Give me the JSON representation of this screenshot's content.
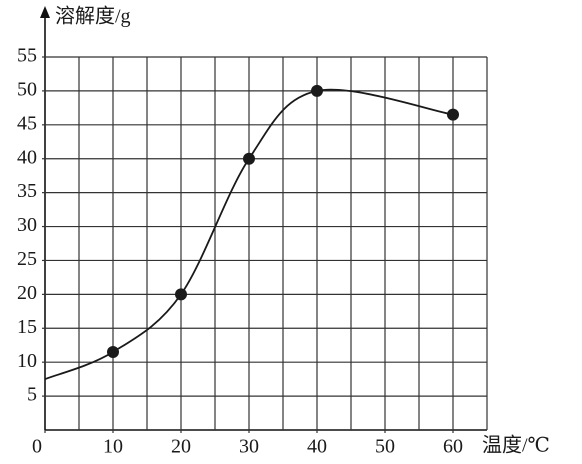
{
  "chart_data": {
    "type": "line",
    "ylabel": "溶解度/g",
    "xlabel": "温度/℃",
    "x": [
      0,
      10,
      20,
      30,
      40,
      60
    ],
    "series": [
      {
        "color": "#1a1a1a",
        "values": [
          7.5,
          11.5,
          20,
          40,
          50,
          46.5
        ],
        "markers": [
          false,
          true,
          true,
          true,
          true,
          true
        ]
      }
    ],
    "smooth": true,
    "xlim": [
      0,
      65
    ],
    "ylim": [
      0,
      55
    ],
    "xticks": [
      0,
      10,
      20,
      30,
      40,
      50,
      60
    ],
    "yticks": [
      5,
      10,
      15,
      20,
      25,
      30,
      35,
      40,
      45,
      50,
      55
    ],
    "grid": true,
    "grid_step": 5
  }
}
